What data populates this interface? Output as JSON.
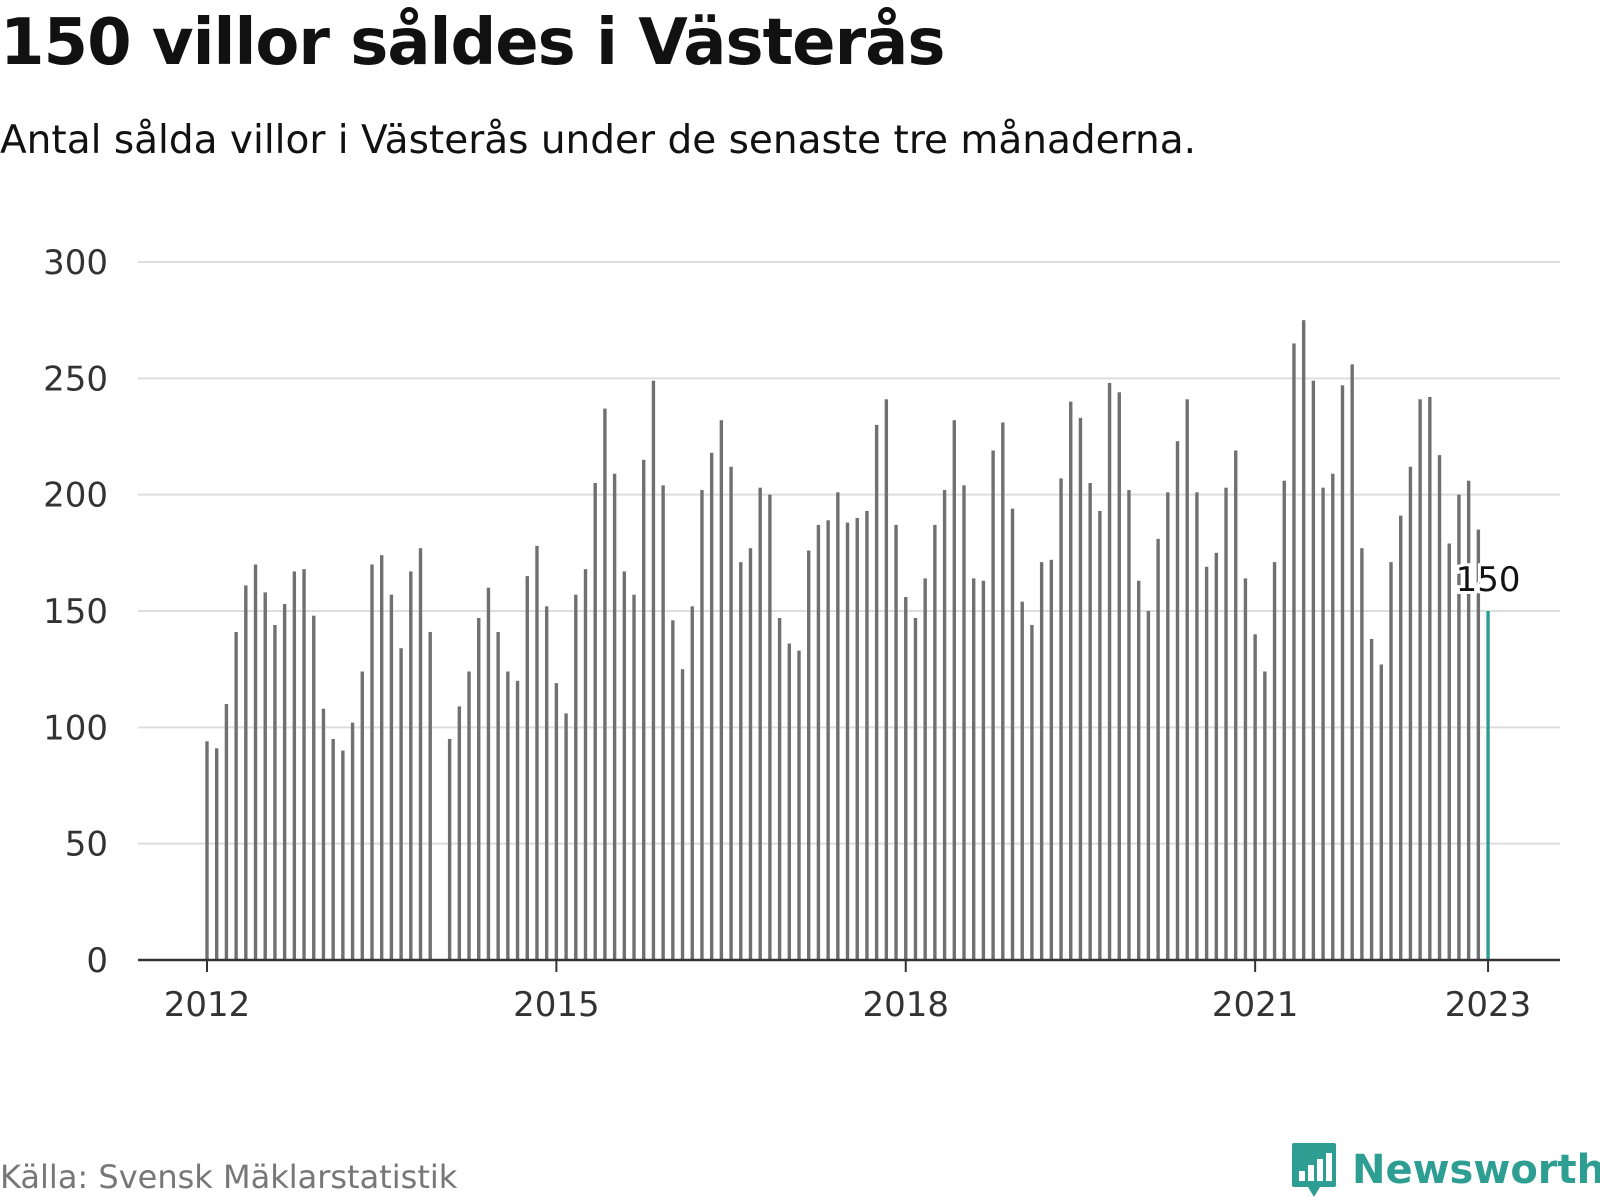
{
  "title": "150 villor såldes i Västerås",
  "subtitle": "Antal sålda villor i Västerås under de senaste tre månaderna.",
  "source": "Källa: Svensk Mäklarstatistik",
  "brand": "Newsworthy",
  "colors": {
    "bar": "#707070",
    "highlight": "#2e9e93",
    "grid": "#dddddd",
    "axis": "#333333",
    "brand": "#2e9e93"
  },
  "chart_data": {
    "type": "bar",
    "title": "",
    "xlabel": "",
    "ylabel": "",
    "ylim": [
      0,
      300
    ],
    "yticks": [
      "0",
      "50",
      "100",
      "150",
      "200",
      "250",
      "300"
    ],
    "xticks": [
      "2012",
      "2015",
      "2018",
      "2021",
      "2023"
    ],
    "grid": true,
    "highlight_label": "150",
    "series": [
      {
        "period": "2012",
        "values": [
          94,
          91,
          110,
          141,
          161,
          170,
          158,
          144,
          153,
          167,
          168,
          148
        ]
      },
      {
        "period": "2013",
        "values": [
          108,
          95,
          90,
          102,
          124,
          170,
          174,
          157,
          134,
          167,
          177,
          141
        ]
      },
      {
        "period": "2014",
        "values": [
          null,
          95,
          109,
          124,
          147,
          160,
          141,
          124,
          120,
          165,
          178,
          152
        ]
      },
      {
        "period": "2015",
        "values": [
          119,
          106,
          157,
          168,
          205,
          237,
          209,
          167,
          157,
          215,
          249,
          204
        ]
      },
      {
        "period": "2016",
        "values": [
          146,
          125,
          152,
          202,
          218,
          232,
          212,
          171,
          177,
          203,
          200,
          147
        ]
      },
      {
        "period": "2017",
        "values": [
          136,
          133,
          176,
          187,
          189,
          201,
          188,
          190,
          193,
          230,
          241,
          187
        ]
      },
      {
        "period": "2018",
        "values": [
          156,
          147,
          164,
          187,
          202,
          232,
          204,
          164,
          163,
          219,
          231,
          194
        ]
      },
      {
        "period": "2019",
        "values": [
          154,
          144,
          171,
          172,
          207,
          240,
          233,
          205,
          193,
          248,
          244,
          202
        ]
      },
      {
        "period": "2020",
        "values": [
          163,
          150,
          181,
          201,
          223,
          241,
          201,
          169,
          175,
          203,
          219,
          164
        ]
      },
      {
        "period": "2021",
        "values": [
          140,
          124,
          171,
          206,
          265,
          275,
          249,
          203,
          209,
          247,
          256,
          177
        ]
      },
      {
        "period": "2022",
        "values": [
          138,
          127,
          171,
          191,
          212,
          241,
          242,
          217,
          179,
          200,
          206,
          185
        ]
      },
      {
        "period": "2023",
        "values": [
          150
        ]
      }
    ]
  }
}
